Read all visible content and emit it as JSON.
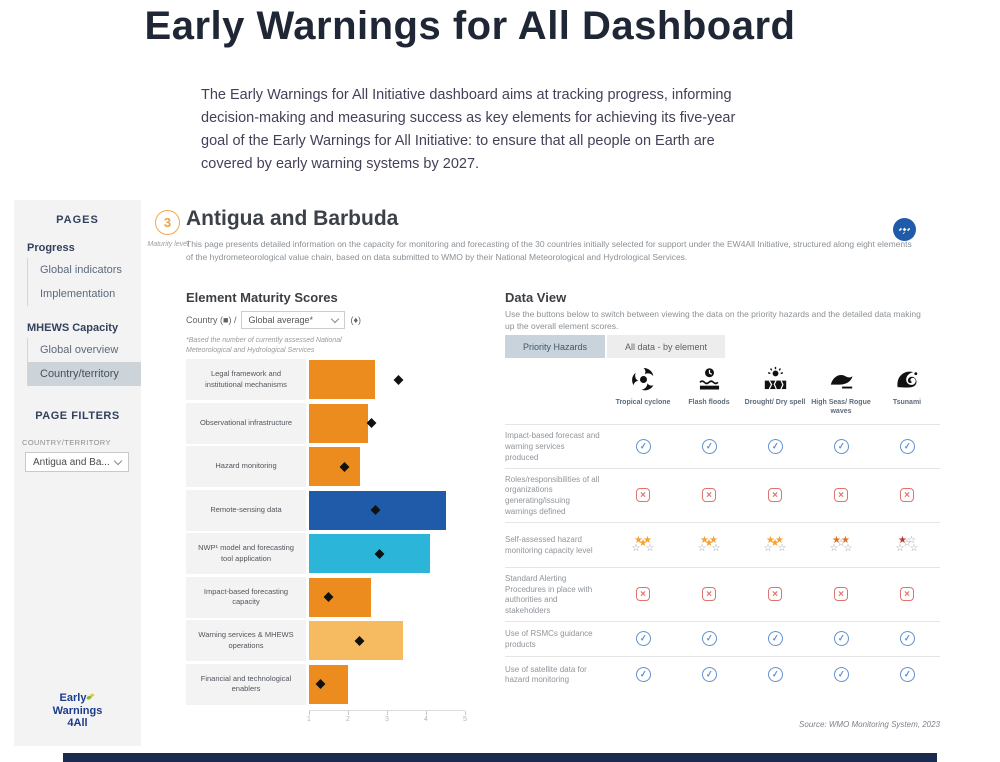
{
  "page": {
    "title": "Early Warnings for All Dashboard",
    "intro": "The Early Warnings for All Initiative dashboard aims at tracking progress, informing decision-making and measuring success as key elements for achieving its five-year goal of the Early Warnings for All Initiative: to ensure that all people on Earth are covered by early warning systems by 2027."
  },
  "sidebar": {
    "pages_header": "PAGES",
    "groups": [
      {
        "label": "Progress",
        "items": [
          {
            "label": "Global indicators",
            "active": false
          },
          {
            "label": "Implementation",
            "active": false
          }
        ]
      },
      {
        "label": "MHEWS Capacity",
        "items": [
          {
            "label": "Global overview",
            "active": false
          },
          {
            "label": "Country/territory",
            "active": true
          }
        ]
      }
    ],
    "filters_header": "PAGE FILTERS",
    "filter_label": "COUNTRY/TERRITORY",
    "filter_value": "Antigua and Ba...",
    "logo_lines": [
      "Early",
      "Warnings",
      "4All"
    ]
  },
  "header": {
    "maturity_value": "3",
    "maturity_label": "Maturity level",
    "country": "Antigua and Barbuda",
    "description": "This page presents detailed information on the capacity for monitoring and forecasting of the 30 countries initially selected for support under the EW4All Initiative, structured along eight elements of the hydrometeorological value chain, based on data submitted to WMO by their National Meteorological and Hydrological Services."
  },
  "chart": {
    "heading": "Element Maturity Scores",
    "control_text": "Country (■) /",
    "dropdown_value": "Global average*",
    "control_suffix": "(♦)",
    "footnote": "*Based the number of currently assessed National Meteorological and Hydrological Services"
  },
  "chart_data": {
    "type": "bar",
    "orientation": "horizontal",
    "title": "Element Maturity Scores",
    "categories": [
      "Legal framework and institutional mechanisms",
      "Observational infrastructure",
      "Hazard monitoring",
      "Remote-sensing data",
      "NWP¹ model and forecasting tool application",
      "Impact-based forecasting capacity",
      "Warning services & MHEWS operations",
      "Financial and technological enablers"
    ],
    "series": [
      {
        "name": "Country",
        "marker": "bar",
        "values": [
          2.7,
          2.5,
          2.3,
          4.5,
          4.1,
          2.6,
          3.4,
          2.0
        ]
      },
      {
        "name": "Global average",
        "marker": "diamond",
        "values": [
          3.3,
          2.6,
          1.9,
          2.7,
          2.8,
          1.5,
          2.3,
          1.3
        ]
      }
    ],
    "bar_colors": [
      "#EC8B1E",
      "#EC8B1E",
      "#EC8B1E",
      "#1F5BA8",
      "#2BB6D9",
      "#EC8B1E",
      "#F6BA60",
      "#EC8B1E"
    ],
    "xlim": [
      1,
      5
    ],
    "x_ticks": [
      1,
      2,
      3,
      4,
      5
    ],
    "grid": false,
    "legend_position": "top-inline"
  },
  "data_view": {
    "heading": "Data View",
    "description": "Use the buttons below to switch between viewing the data on the priority hazards and the detailed data making up the overall element scores.",
    "buttons": [
      {
        "label": "Priority Hazards",
        "active": true
      },
      {
        "label": "All data - by element",
        "active": false
      }
    ],
    "hazards": [
      {
        "label": "Tropical cyclone",
        "icon": "cyclone-icon"
      },
      {
        "label": "Flash floods",
        "icon": "flash-floods-icon"
      },
      {
        "label": "Drought/ Dry spell",
        "icon": "drought-icon"
      },
      {
        "label": "High Seas/ Rogue waves",
        "icon": "high-seas-icon"
      },
      {
        "label": "Tsunami",
        "icon": "tsunami-icon"
      }
    ],
    "rows": [
      {
        "label": "Impact-based forecast and warning services produced",
        "type": "check",
        "values": [
          "yes",
          "yes",
          "yes",
          "yes",
          "yes"
        ]
      },
      {
        "label": "Roles/responsibilities of all organizations generating/issuing warnings defined",
        "type": "cross",
        "values": [
          "no",
          "no",
          "no",
          "no",
          "no"
        ]
      },
      {
        "label": "Self-assessed hazard monitoring capacity level",
        "type": "stars",
        "ratings": [
          {
            "count": 3,
            "max": 5,
            "color": "#F4A22D"
          },
          {
            "count": 3,
            "max": 5,
            "color": "#F4A22D"
          },
          {
            "count": 3,
            "max": 5,
            "color": "#F4A22D"
          },
          {
            "count": 2,
            "max": 5,
            "color": "#E4701E"
          },
          {
            "count": 1,
            "max": 5,
            "color": "#C23528"
          }
        ]
      },
      {
        "label": "Standard Alerting Procedures in place with authorities and stakeholders",
        "type": "cross",
        "values": [
          "no",
          "no",
          "no",
          "no",
          "no"
        ]
      },
      {
        "label": "Use of RSMCs guidance products",
        "type": "check",
        "values": [
          "yes",
          "yes",
          "yes",
          "yes",
          "yes"
        ]
      },
      {
        "label": "Use of satellite data for hazard monitoring",
        "type": "check",
        "values": [
          "yes",
          "yes",
          "yes",
          "yes",
          "yes"
        ]
      }
    ],
    "source": "Source: WMO Monitoring System, 2023"
  },
  "colors": {
    "accent_orange": "#EC8B1E",
    "accent_amber": "#F6BA60",
    "accent_dark_blue": "#1F5BA8",
    "accent_cyan": "#2BB6D9",
    "check_blue": "#6292CF",
    "cross_red": "#DF736D",
    "maturity_orange": "#F0A03C",
    "navy": "#33415C",
    "star_outline": "#9AA0A8"
  }
}
